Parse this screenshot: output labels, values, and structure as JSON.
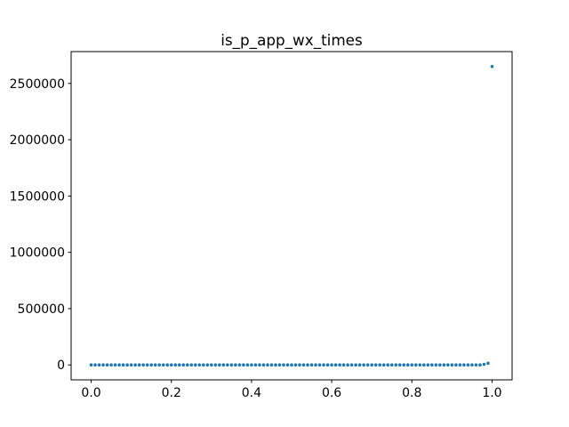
{
  "chart_data": {
    "type": "scatter",
    "title": "is_p_app_wx_times",
    "xlabel": "",
    "ylabel": "",
    "xlim": [
      -0.05,
      1.05
    ],
    "ylim": [
      -132500,
      2782500
    ],
    "x_ticks": [
      0.0,
      0.2,
      0.4,
      0.6,
      0.8,
      1.0
    ],
    "x_tick_labels": [
      "0.0",
      "0.2",
      "0.4",
      "0.6",
      "0.8",
      "1.0"
    ],
    "y_ticks": [
      0,
      500000,
      1000000,
      1500000,
      2000000,
      2500000
    ],
    "y_tick_labels": [
      "0",
      "500000",
      "1000000",
      "1500000",
      "2000000",
      "2500000"
    ],
    "grid": false,
    "marker_color": "#1f77b4",
    "series": [
      {
        "points": [
          [
            0.0,
            0
          ],
          [
            0.01,
            0
          ],
          [
            0.02,
            0
          ],
          [
            0.03,
            0
          ],
          [
            0.04,
            0
          ],
          [
            0.05,
            0
          ],
          [
            0.06,
            0
          ],
          [
            0.07,
            0
          ],
          [
            0.08,
            0
          ],
          [
            0.09,
            0
          ],
          [
            0.1,
            0
          ],
          [
            0.11,
            0
          ],
          [
            0.12,
            0
          ],
          [
            0.13,
            0
          ],
          [
            0.14,
            0
          ],
          [
            0.15,
            0
          ],
          [
            0.16,
            0
          ],
          [
            0.17,
            0
          ],
          [
            0.18,
            0
          ],
          [
            0.19,
            0
          ],
          [
            0.2,
            0
          ],
          [
            0.21,
            0
          ],
          [
            0.22,
            0
          ],
          [
            0.23,
            0
          ],
          [
            0.24,
            0
          ],
          [
            0.25,
            0
          ],
          [
            0.26,
            0
          ],
          [
            0.27,
            0
          ],
          [
            0.28,
            0
          ],
          [
            0.29,
            0
          ],
          [
            0.3,
            0
          ],
          [
            0.31,
            0
          ],
          [
            0.32,
            0
          ],
          [
            0.33,
            0
          ],
          [
            0.34,
            0
          ],
          [
            0.35,
            0
          ],
          [
            0.36,
            0
          ],
          [
            0.37,
            0
          ],
          [
            0.38,
            0
          ],
          [
            0.39,
            0
          ],
          [
            0.4,
            0
          ],
          [
            0.41,
            0
          ],
          [
            0.42,
            0
          ],
          [
            0.43,
            0
          ],
          [
            0.44,
            0
          ],
          [
            0.45,
            0
          ],
          [
            0.46,
            0
          ],
          [
            0.47,
            0
          ],
          [
            0.48,
            0
          ],
          [
            0.49,
            0
          ],
          [
            0.5,
            0
          ],
          [
            0.51,
            0
          ],
          [
            0.52,
            0
          ],
          [
            0.53,
            0
          ],
          [
            0.54,
            0
          ],
          [
            0.55,
            0
          ],
          [
            0.56,
            0
          ],
          [
            0.57,
            0
          ],
          [
            0.58,
            0
          ],
          [
            0.59,
            0
          ],
          [
            0.6,
            0
          ],
          [
            0.61,
            0
          ],
          [
            0.62,
            0
          ],
          [
            0.63,
            0
          ],
          [
            0.64,
            0
          ],
          [
            0.65,
            0
          ],
          [
            0.66,
            0
          ],
          [
            0.67,
            0
          ],
          [
            0.68,
            0
          ],
          [
            0.69,
            0
          ],
          [
            0.7,
            0
          ],
          [
            0.71,
            0
          ],
          [
            0.72,
            0
          ],
          [
            0.73,
            0
          ],
          [
            0.74,
            0
          ],
          [
            0.75,
            0
          ],
          [
            0.76,
            0
          ],
          [
            0.77,
            0
          ],
          [
            0.78,
            0
          ],
          [
            0.79,
            0
          ],
          [
            0.8,
            0
          ],
          [
            0.81,
            0
          ],
          [
            0.82,
            0
          ],
          [
            0.83,
            0
          ],
          [
            0.84,
            0
          ],
          [
            0.85,
            0
          ],
          [
            0.86,
            0
          ],
          [
            0.87,
            0
          ],
          [
            0.88,
            0
          ],
          [
            0.89,
            0
          ],
          [
            0.9,
            0
          ],
          [
            0.91,
            0
          ],
          [
            0.92,
            0
          ],
          [
            0.93,
            0
          ],
          [
            0.94,
            0
          ],
          [
            0.95,
            0
          ],
          [
            0.96,
            0
          ],
          [
            0.97,
            0
          ],
          [
            0.98,
            5000
          ],
          [
            0.99,
            15000
          ],
          [
            1.0,
            2650000
          ]
        ]
      }
    ]
  }
}
